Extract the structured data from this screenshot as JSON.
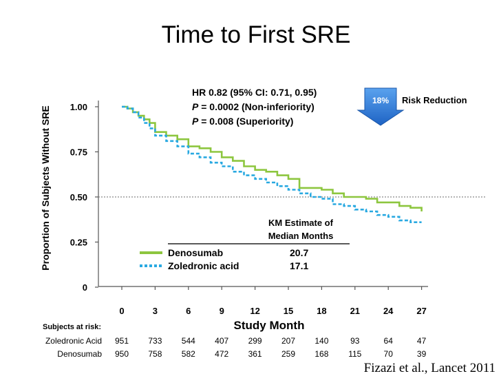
{
  "slide_title": "Time to First SRE",
  "citation": "Fizazi et al., Lancet 2011",
  "stats": {
    "hr": "HR 0.82 (95% CI: 0.71, 0.95)",
    "p1_label": "P",
    "p1_rest": " = 0.0002 (Non-inferiority)",
    "p2_label": "P",
    "p2_rest": " = 0.008 (Superiority)"
  },
  "risk_reduction": {
    "percent": "18%",
    "label": "Risk Reduction",
    "color": "#2f7fd8"
  },
  "km_estimate": {
    "header_line1": "KM Estimate of",
    "header_line2": "Median Months",
    "rows": [
      {
        "name": "Denosumab",
        "value": "20.7"
      },
      {
        "name": "Zoledronic acid",
        "value": "17.1"
      }
    ]
  },
  "risk_table": {
    "header": "Subjects at risk:",
    "rows": [
      {
        "name": "Zoledronic Acid",
        "values": [
          "951",
          "733",
          "544",
          "407",
          "299",
          "207",
          "140",
          "93",
          "64",
          "47"
        ]
      },
      {
        "name": "Denosumab",
        "values": [
          "950",
          "758",
          "582",
          "472",
          "361",
          "259",
          "168",
          "115",
          "70",
          "39"
        ]
      }
    ]
  },
  "chart_data": {
    "type": "line",
    "title": "Time to First SRE",
    "xlabel": "Study Month",
    "ylabel": "Proportion of Subjects Without SRE",
    "x_ticks": [
      0,
      3,
      6,
      9,
      12,
      15,
      18,
      21,
      24,
      27
    ],
    "x_tick_labels": [
      "0",
      "3",
      "6",
      "9",
      "12",
      "15",
      "18",
      "21",
      "24",
      "27"
    ],
    "y_ticks": [
      0,
      0.25,
      0.5,
      0.75,
      1.0
    ],
    "y_tick_labels": [
      "0",
      "0.25",
      "0.50",
      "0.75",
      "1.00"
    ],
    "xlim": [
      -2,
      27.5
    ],
    "ylim": [
      0,
      1.05
    ],
    "reference_line": 0.5,
    "series": [
      {
        "name": "Denosumab",
        "color": "#8dc63f",
        "style": "solid",
        "x": [
          0,
          0.5,
          1,
          1.5,
          2,
          2.5,
          3,
          4,
          5,
          6,
          7,
          8,
          9,
          10,
          11,
          12,
          13,
          14,
          15,
          16,
          17,
          18,
          19,
          20,
          21,
          22,
          23,
          24,
          25,
          26,
          27
        ],
        "y": [
          1.0,
          0.99,
          0.97,
          0.95,
          0.93,
          0.91,
          0.86,
          0.84,
          0.82,
          0.78,
          0.77,
          0.75,
          0.72,
          0.7,
          0.67,
          0.65,
          0.64,
          0.62,
          0.6,
          0.55,
          0.55,
          0.54,
          0.52,
          0.5,
          0.5,
          0.49,
          0.47,
          0.47,
          0.45,
          0.44,
          0.42
        ]
      },
      {
        "name": "Zoledronic acid",
        "color": "#29a9e1",
        "style": "dashed",
        "x": [
          0,
          0.5,
          1,
          1.5,
          2,
          2.5,
          3,
          4,
          5,
          6,
          7,
          8,
          9,
          10,
          11,
          12,
          13,
          14,
          15,
          16,
          17,
          18,
          19,
          20,
          21,
          22,
          23,
          24,
          25,
          26,
          27
        ],
        "y": [
          1.0,
          0.99,
          0.97,
          0.94,
          0.91,
          0.88,
          0.84,
          0.81,
          0.78,
          0.74,
          0.72,
          0.69,
          0.67,
          0.64,
          0.62,
          0.6,
          0.58,
          0.56,
          0.54,
          0.52,
          0.5,
          0.49,
          0.46,
          0.45,
          0.43,
          0.42,
          0.4,
          0.39,
          0.37,
          0.36,
          0.36
        ]
      }
    ]
  }
}
